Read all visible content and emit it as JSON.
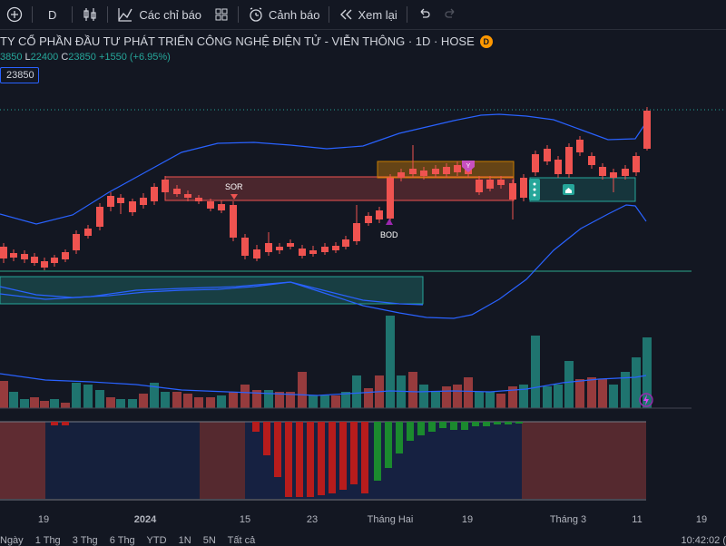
{
  "toolbar": {
    "interval": "D",
    "indicators_label": "Các chỉ báo",
    "alert_label": "Cảnh báo",
    "replay_label": "Xem lại"
  },
  "legend": {
    "title": "TY CỔ PHẦN ĐẦU TƯ PHÁT TRIỂN CÔNG NGHỆ ĐIỆN TỬ - VIỄN THÔNG · 1D · HOSE",
    "badge": "D",
    "open_value": "3850",
    "low_label": "L",
    "low_value": "22400",
    "close_label": "C",
    "close_value": "23850",
    "change": "+1550 (+6.95%)",
    "price_box": "23850"
  },
  "annotations": {
    "sor": "SOR",
    "bod": "BOD",
    "y_marker": "Y"
  },
  "x_axis": {
    "labels": [
      "19",
      "2024",
      "15",
      "23",
      "Tháng Hai",
      "19",
      "Tháng 3",
      "11",
      "19"
    ]
  },
  "ranges": [
    "Ngày",
    "1 Thg",
    "3 Thg",
    "6 Thg",
    "YTD",
    "1N",
    "5N",
    "Tất cả"
  ],
  "clock": "10:42:02 (",
  "colors": {
    "up": "#26a69a",
    "down": "#ef5350",
    "bollinger": "#2962ff",
    "background": "#131722"
  }
}
